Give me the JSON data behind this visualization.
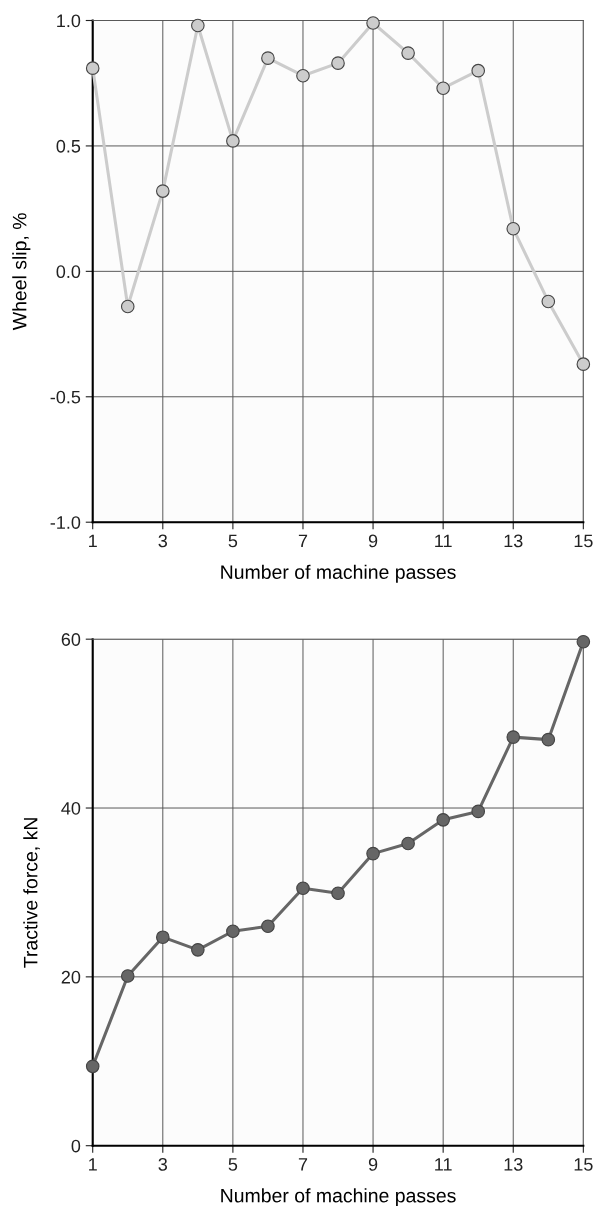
{
  "chart_data": [
    {
      "type": "line",
      "xlabel": "Number of machine passes",
      "ylabel": "Wheel slip, %",
      "x": [
        1,
        2,
        3,
        4,
        5,
        6,
        7,
        8,
        9,
        10,
        11,
        12,
        13,
        14,
        15
      ],
      "series": [
        {
          "color": "#cccccc",
          "values": [
            0.81,
            -0.14,
            0.32,
            0.98,
            0.52,
            0.85,
            0.78,
            0.83,
            0.99,
            0.87,
            0.73,
            0.8,
            0.17,
            -0.12,
            -0.37
          ]
        }
      ],
      "xlim": [
        1,
        15
      ],
      "xticks": [
        1,
        3,
        5,
        7,
        9,
        11,
        13,
        15
      ],
      "ylim": [
        -1.0,
        1.0
      ],
      "yticks": [
        {
          "value": -1.0,
          "label": "-1.0"
        },
        {
          "value": -0.5,
          "label": "-0.5"
        },
        {
          "value": 0.0,
          "label": "0.0"
        },
        {
          "value": 0.5,
          "label": "0.5"
        },
        {
          "value": 1.0,
          "label": "1.0"
        }
      ],
      "grid": true,
      "marker": "circle",
      "line_style": "solid"
    },
    {
      "type": "line",
      "xlabel": "Number of machine passes",
      "ylabel": "Tractive force, kN",
      "x": [
        1,
        2,
        3,
        4,
        5,
        6,
        7,
        8,
        9,
        10,
        11,
        12,
        13,
        14,
        15
      ],
      "series": [
        {
          "color": "#666666",
          "values": [
            9.4,
            20.1,
            24.7,
            23.2,
            25.4,
            26.0,
            30.5,
            29.9,
            34.6,
            35.8,
            38.6,
            39.6,
            48.4,
            48.1,
            59.7
          ]
        }
      ],
      "xlim": [
        1,
        15
      ],
      "xticks": [
        1,
        3,
        5,
        7,
        9,
        11,
        13,
        15
      ],
      "ylim": [
        0,
        60
      ],
      "yticks": [
        0,
        20,
        40,
        60
      ],
      "grid": true,
      "marker": "circle",
      "line_style": "solid"
    }
  ]
}
